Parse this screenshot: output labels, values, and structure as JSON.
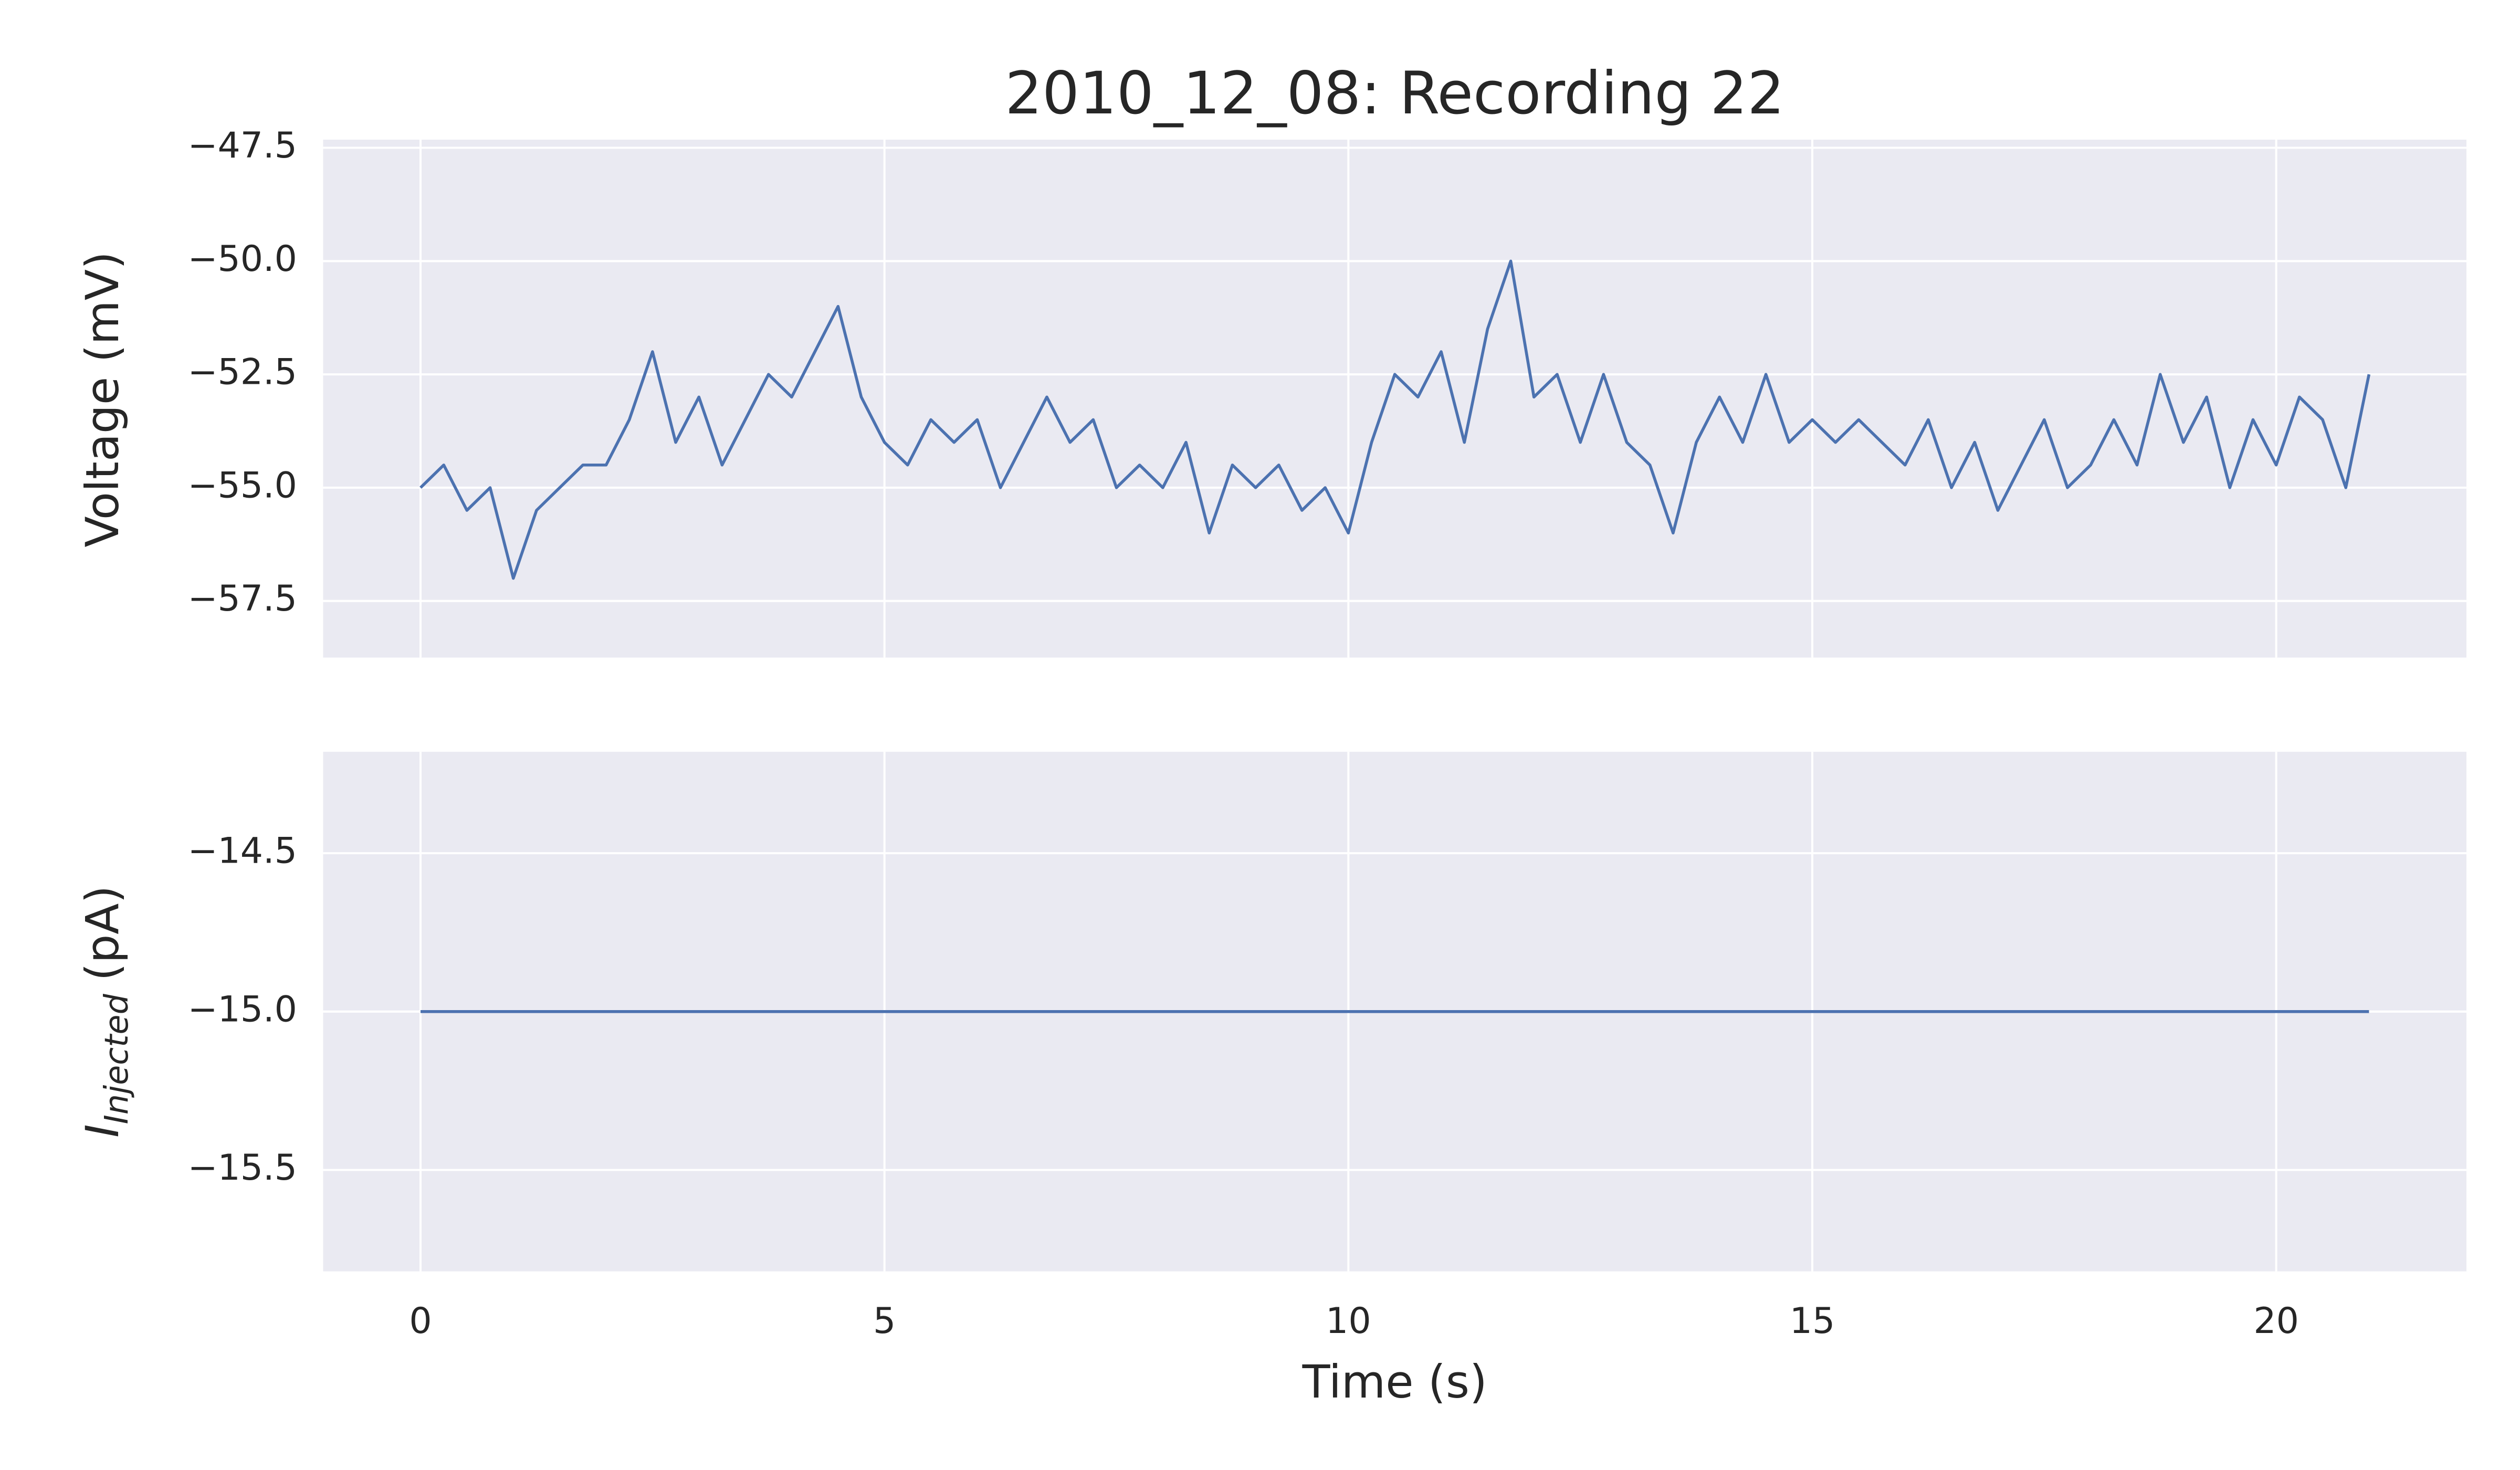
{
  "chart_data": [
    {
      "type": "line",
      "title": "2010_12_08: Recording 22",
      "ylabel": "Voltage (mV)",
      "xlim": [
        -1.05,
        22.05
      ],
      "ylim": [
        -58.75,
        -47.32
      ],
      "xticks": [
        0,
        5,
        10,
        15,
        20
      ],
      "yticks": [
        {
          "value": -47.5,
          "label": "−47.5"
        },
        {
          "value": -50.0,
          "label": "−50.0"
        },
        {
          "value": -52.5,
          "label": "−52.5"
        },
        {
          "value": -55.0,
          "label": "−55.0"
        },
        {
          "value": -57.5,
          "label": "−57.5"
        }
      ],
      "grid": true,
      "series": [
        {
          "color": "#4c72b0",
          "x": [
            0,
            0.25,
            0.5,
            0.75,
            1,
            1.25,
            1.5,
            1.75,
            2,
            2.25,
            2.5,
            2.75,
            3,
            3.25,
            3.5,
            3.75,
            4,
            4.25,
            4.5,
            4.75,
            5,
            5.25,
            5.5,
            5.75,
            6,
            6.25,
            6.5,
            6.75,
            7,
            7.25,
            7.5,
            7.75,
            8,
            8.25,
            8.5,
            8.75,
            9,
            9.25,
            9.5,
            9.75,
            10,
            10.25,
            10.5,
            10.75,
            11,
            11.25,
            11.5,
            11.75,
            12,
            12.25,
            12.5,
            12.75,
            13,
            13.25,
            13.5,
            13.75,
            14,
            14.25,
            14.5,
            14.75,
            15,
            15.25,
            15.5,
            15.75,
            16,
            16.25,
            16.5,
            16.75,
            17,
            17.25,
            17.5,
            17.75,
            18,
            18.25,
            18.5,
            18.75,
            19,
            19.25,
            19.5,
            19.75,
            20,
            20.25,
            20.5,
            20.75,
            21
          ],
          "values": [
            -55,
            -54.5,
            -55.5,
            -55,
            -57,
            -55.5,
            -55,
            -54.5,
            -54.5,
            -53.5,
            -52,
            -54,
            -53,
            -54.5,
            -53.5,
            -52.5,
            -53,
            -52,
            -51,
            -53,
            -54,
            -54.5,
            -53.5,
            -54,
            -53.5,
            -55,
            -54,
            -53,
            -54,
            -53.5,
            -55,
            -54.5,
            -55,
            -54,
            -56,
            -54.5,
            -55,
            -54.5,
            -55.5,
            -55,
            -56,
            -54,
            -52.5,
            -53,
            -52,
            -54,
            -51.5,
            -50,
            -53,
            -52.5,
            -54,
            -52.5,
            -54,
            -54.5,
            -56,
            -54,
            -53,
            -54,
            -52.5,
            -54,
            -53.5,
            -54,
            -53.5,
            -54,
            -54.5,
            -53.5,
            -55,
            -54,
            -55.5,
            -54.5,
            -53.5,
            -55,
            -54.5,
            -53.5,
            -54.5,
            -52.5,
            -54,
            -53,
            -55,
            -53.5,
            -54.5,
            -53,
            -53.5,
            -55,
            -52.5
          ]
        }
      ]
    },
    {
      "type": "line",
      "xlabel": "Time (s)",
      "ylabel_parts": [
        "I",
        "Injected",
        "(pA)"
      ],
      "xlim": [
        -1.05,
        22.05
      ],
      "ylim": [
        -15.82,
        -14.18
      ],
      "xticks": [
        0,
        5,
        10,
        15,
        20
      ],
      "yticks": [
        {
          "value": -14.5,
          "label": "−14.5"
        },
        {
          "value": -15.0,
          "label": "−15.0"
        },
        {
          "value": -15.5,
          "label": "−15.5"
        }
      ],
      "grid": true,
      "series": [
        {
          "color": "#4c72b0",
          "x": [
            0,
            21
          ],
          "values": [
            -15,
            -15
          ]
        }
      ]
    }
  ]
}
